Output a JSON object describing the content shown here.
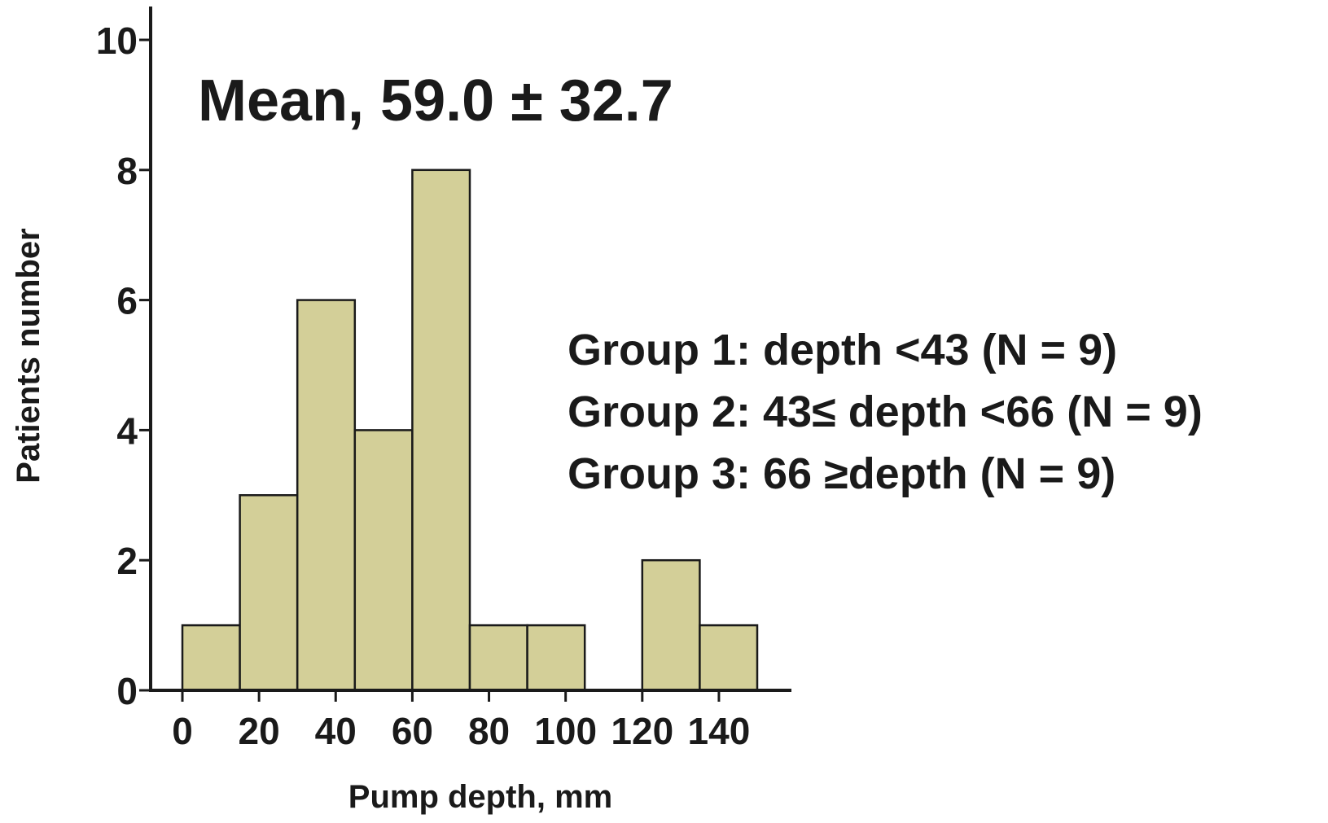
{
  "chart_data": {
    "type": "bar",
    "bin_edges": [
      0,
      15,
      30,
      45,
      60,
      75,
      90,
      105,
      120,
      135,
      150
    ],
    "values": [
      1,
      3,
      6,
      4,
      8,
      1,
      1,
      0,
      2,
      1
    ],
    "xlabel": "Pump depth, mm",
    "ylabel": "Patients number",
    "xticks": [
      0,
      20,
      40,
      60,
      80,
      100,
      120,
      140
    ],
    "yticks": [
      0,
      2,
      4,
      6,
      8,
      10
    ],
    "xlim": [
      0,
      150
    ],
    "ylim": [
      0,
      10
    ],
    "bar_color": "#d3cf98",
    "grid": false,
    "annotations": {
      "mean": "Mean, 59.0 ± 32.7",
      "groups": [
        "Group 1: depth <43 (N = 9)",
        "Group 2: 43≤ depth <66 (N = 9)",
        "Group 3: 66 ≥depth (N = 9)"
      ]
    }
  }
}
